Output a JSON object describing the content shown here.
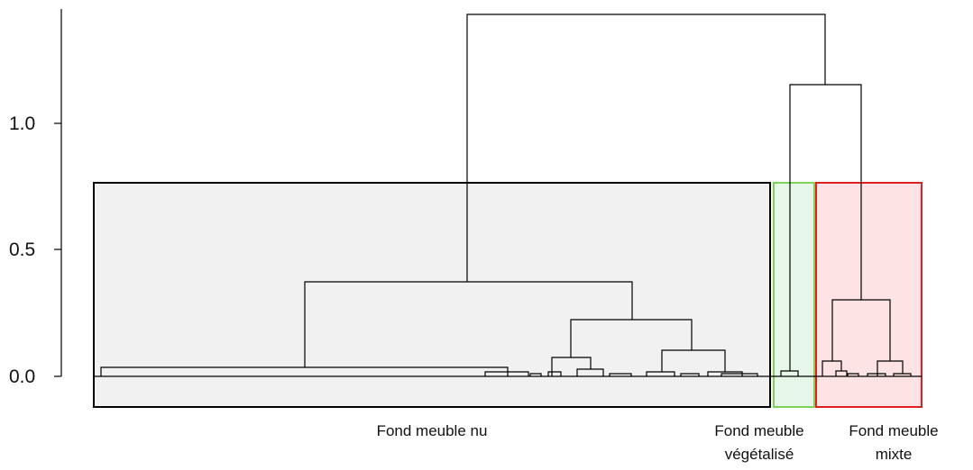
{
  "diagram": {
    "type": "dendrogram",
    "y_axis": {
      "ticks": [
        {
          "value": 0.0,
          "label": "0.0"
        },
        {
          "value": 0.5,
          "label": "0.5"
        },
        {
          "value": 1.0,
          "label": "1.0"
        }
      ]
    },
    "clusters": [
      {
        "id": "nu",
        "label_lines": [
          "Fond meuble nu"
        ],
        "fill": "#f1f1f1",
        "stroke": "#000000"
      },
      {
        "id": "vegetalise",
        "label_lines": [
          "Fond meuble",
          "végétalisé"
        ],
        "fill": "#e6f6e8",
        "stroke": "#7ed257"
      },
      {
        "id": "mixte",
        "label_lines": [
          "Fond meuble",
          "mixte"
        ],
        "fill": "#fde3e3",
        "stroke": "#e02020"
      }
    ],
    "colors": {
      "line": "#000000",
      "background": "#ffffff"
    }
  }
}
